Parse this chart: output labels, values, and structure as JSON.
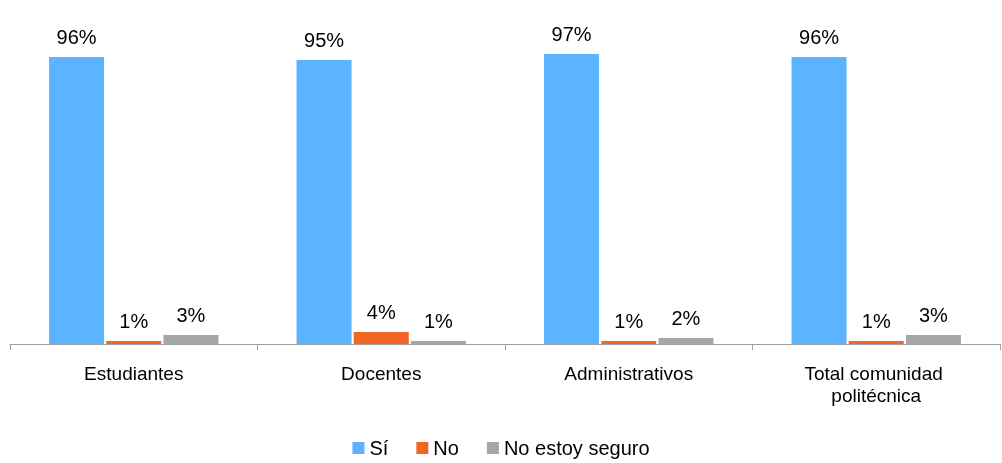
{
  "chart_data": {
    "type": "bar",
    "categories": [
      "Estudiantes",
      "Docentes",
      "Administrativos",
      "Total comunidad politécnica"
    ],
    "series": [
      {
        "name": "Sí",
        "color": "#5cb3ff",
        "values": [
          96,
          95,
          97,
          96
        ],
        "value_labels": [
          "96%",
          "95%",
          "97%",
          "96%"
        ]
      },
      {
        "name": "No",
        "color": "#f26522",
        "values": [
          1,
          4,
          1,
          1
        ],
        "value_labels": [
          "1%",
          "4%",
          "1%",
          "1%"
        ]
      },
      {
        "name": "No estoy seguro",
        "color": "#a6a6a6",
        "values": [
          3,
          1,
          2,
          3
        ],
        "value_labels": [
          "3%",
          "1%",
          "2%",
          "3%"
        ]
      }
    ],
    "legend": "bottom"
  }
}
